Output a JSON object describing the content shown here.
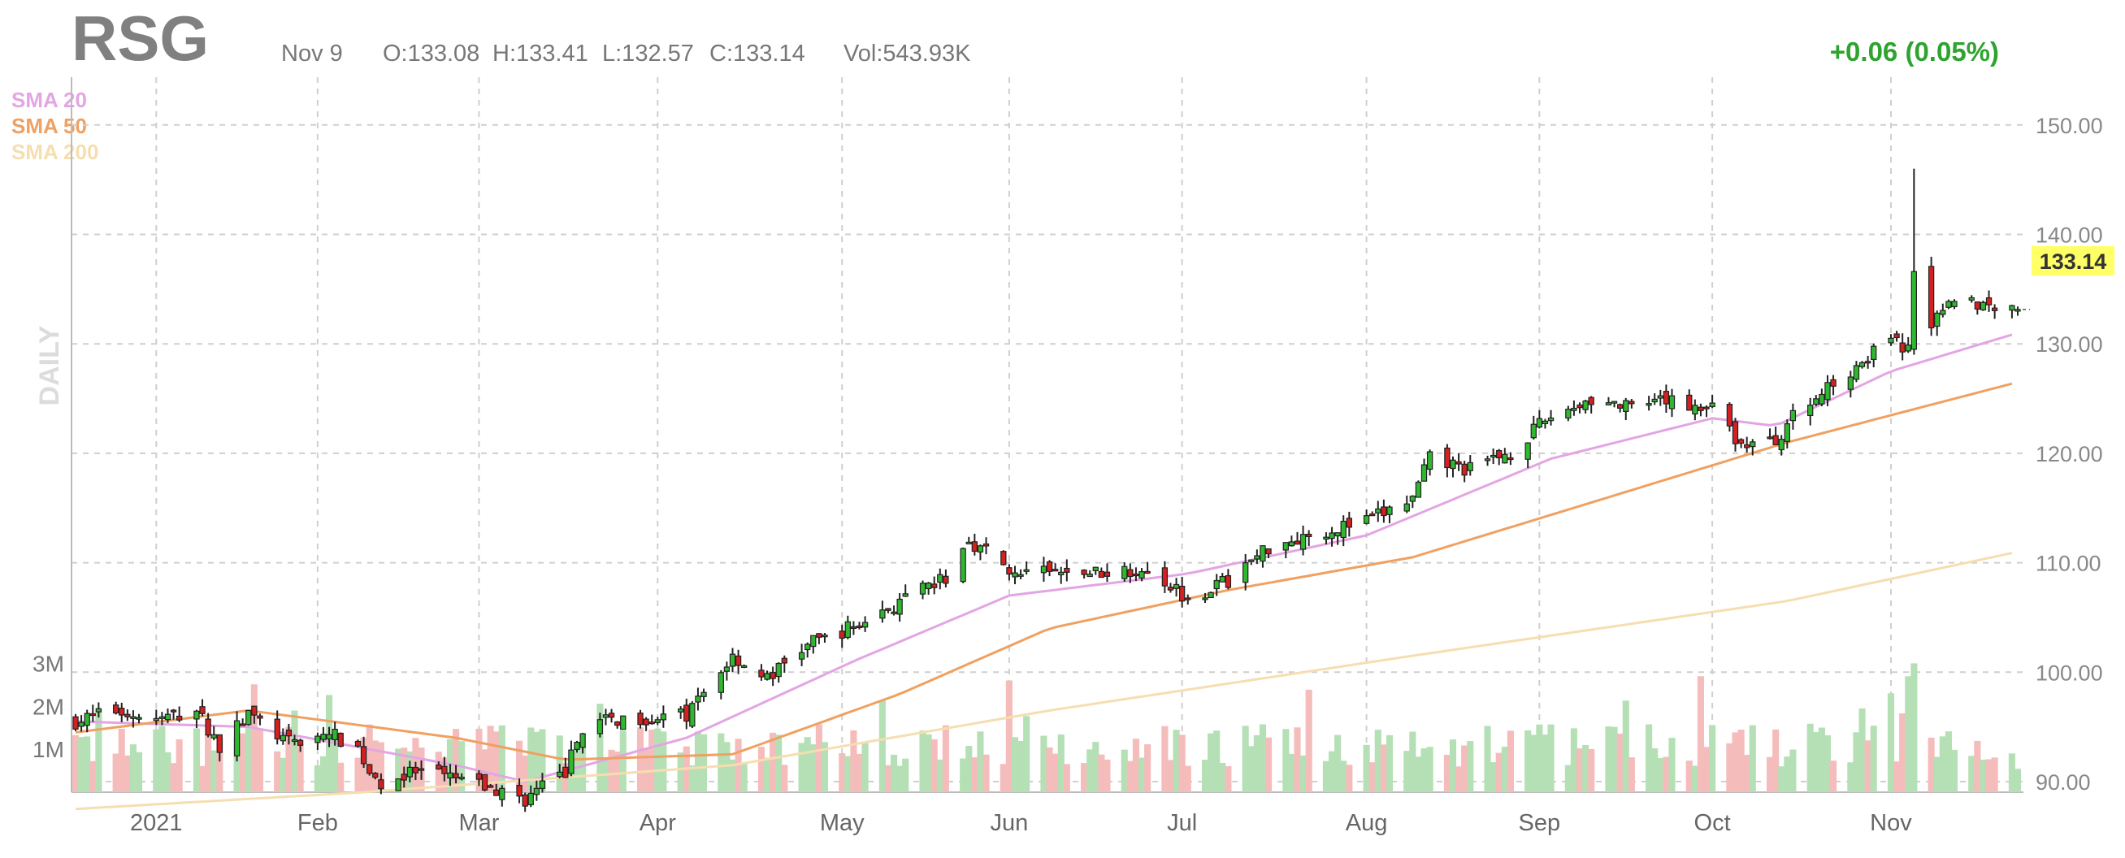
{
  "header": {
    "ticker": "RSG",
    "date": "Nov 9",
    "open": "O:133.08",
    "high": "H:133.41",
    "low": "L:132.57",
    "close": "C:133.14",
    "volume": "Vol:543.93K",
    "change": "+0.06 (0.05%)"
  },
  "period_label": "DAILY",
  "legend": [
    {
      "label": "SMA 20",
      "color": "#e3a5e3"
    },
    {
      "label": "SMA 50",
      "color": "#f0a060"
    },
    {
      "label": "SMA 200",
      "color": "#f5deb0"
    }
  ],
  "colors": {
    "up": "#2fb82f",
    "down": "#d42020",
    "vol_up": "#b5e0b5",
    "vol_down": "#f5bcbc",
    "last_bg": "#ffff66"
  },
  "last_price_label": "133.14",
  "chart_data": {
    "type": "candlestick",
    "ylim": [
      85,
      150
    ],
    "y_ticks": [
      "150.00",
      "140.00",
      "130.00",
      "120.00",
      "110.00",
      "100.00",
      "90.00"
    ],
    "x_ticks": [
      "2021",
      "Feb",
      "Mar",
      "Apr",
      "May",
      "Jun",
      "Jul",
      "Aug",
      "Sep",
      "Oct",
      "Nov"
    ],
    "volume_ticks": [
      "3M",
      "2M",
      "1M"
    ],
    "volume_ylim": [
      0,
      3500000
    ],
    "price_anchors": [
      [
        "2020-12-21",
        95.5
      ],
      [
        "2020-12-28",
        96.5
      ],
      [
        "2021-01-04",
        95.6
      ],
      [
        "2021-01-11",
        96.5
      ],
      [
        "2021-01-15",
        93.2
      ],
      [
        "2021-01-20",
        96.2
      ],
      [
        "2021-01-27",
        93.5
      ],
      [
        "2021-02-03",
        94.4
      ],
      [
        "2021-02-08",
        93.1
      ],
      [
        "2021-02-11",
        89.8
      ],
      [
        "2021-02-18",
        90.8
      ],
      [
        "2021-02-25",
        90.3
      ],
      [
        "2021-03-02",
        89.5
      ],
      [
        "2021-03-09",
        88.4
      ],
      [
        "2021-03-16",
        90.9
      ],
      [
        "2021-03-19",
        95.0
      ],
      [
        "2021-03-26",
        95.8
      ],
      [
        "2021-04-06",
        96.0
      ],
      [
        "2021-04-14",
        101.5
      ],
      [
        "2021-04-20",
        99.4
      ],
      [
        "2021-04-27",
        102.5
      ],
      [
        "2021-05-05",
        104.2
      ],
      [
        "2021-05-13",
        106.3
      ],
      [
        "2021-05-21",
        108.6
      ],
      [
        "2021-05-25",
        112.1
      ],
      [
        "2021-06-01",
        109.5
      ],
      [
        "2021-06-08",
        109.0
      ],
      [
        "2021-06-18",
        109.2
      ],
      [
        "2021-06-25",
        109.6
      ],
      [
        "2021-07-02",
        106.8
      ],
      [
        "2021-07-09",
        108.4
      ],
      [
        "2021-07-16",
        111.5
      ],
      [
        "2021-07-23",
        112.6
      ],
      [
        "2021-08-02",
        113.8
      ],
      [
        "2021-08-10",
        115.8
      ],
      [
        "2021-08-13",
        119.5
      ],
      [
        "2021-08-20",
        118.5
      ],
      [
        "2021-08-27",
        120.2
      ],
      [
        "2021-09-03",
        123.4
      ],
      [
        "2021-09-10",
        125.0
      ],
      [
        "2021-09-17",
        124.0
      ],
      [
        "2021-09-24",
        124.8
      ],
      [
        "2021-10-01",
        124.0
      ],
      [
        "2021-10-06",
        120.8
      ],
      [
        "2021-10-12",
        121.0
      ],
      [
        "2021-10-14",
        122.8
      ],
      [
        "2021-10-20",
        125.5
      ],
      [
        "2021-10-27",
        128.5
      ],
      [
        "2021-11-01",
        130.2
      ],
      [
        "2021-11-05",
        129.5
      ],
      [
        "2021-11-11",
        134.5
      ],
      [
        "2021-11-17",
        133.6
      ],
      [
        "2021-11-23",
        133.14
      ]
    ],
    "ohlc_samples": [
      {
        "date": "2021-11-05",
        "open": 129.5,
        "high": 146.0,
        "low": 129.0,
        "close": 136.6
      },
      {
        "date": "2021-11-23",
        "open": 133.08,
        "high": 133.41,
        "low": 132.57,
        "close": 133.14
      }
    ],
    "volume_samples": [
      {
        "date": "2021-11-05",
        "volume": 3000000
      },
      {
        "date": "2021-11-04",
        "volume": 2700000
      },
      {
        "date": "2021-09-29",
        "volume": 2700000
      },
      {
        "date": "2021-06-01",
        "volume": 2600000
      },
      {
        "date": "2021-11-23",
        "volume": 543930
      }
    ],
    "sma": {
      "SMA 20": [
        [
          "2020-12-21",
          95.5
        ],
        [
          "2021-01-20",
          95.0
        ],
        [
          "2021-02-25",
          91.5
        ],
        [
          "2021-03-09",
          90.0
        ],
        [
          "2021-04-06",
          94.0
        ],
        [
          "2021-05-05",
          101.0
        ],
        [
          "2021-06-01",
          107.0
        ],
        [
          "2021-07-02",
          109.0
        ],
        [
          "2021-08-02",
          112.5
        ],
        [
          "2021-09-03",
          119.5
        ],
        [
          "2021-10-01",
          123.2
        ],
        [
          "2021-10-12",
          122.5
        ],
        [
          "2021-11-01",
          127.5
        ],
        [
          "2021-11-23",
          131.0
        ]
      ],
      "SMA 50": [
        [
          "2020-12-21",
          94.5
        ],
        [
          "2021-01-20",
          96.5
        ],
        [
          "2021-02-25",
          94.0
        ],
        [
          "2021-03-16",
          92.0
        ],
        [
          "2021-04-14",
          92.5
        ],
        [
          "2021-05-13",
          98.0
        ],
        [
          "2021-06-08",
          104.0
        ],
        [
          "2021-07-09",
          107.5
        ],
        [
          "2021-08-10",
          110.5
        ],
        [
          "2021-09-10",
          115.5
        ],
        [
          "2021-10-14",
          121.0
        ],
        [
          "2021-11-23",
          126.5
        ]
      ],
      "SMA 200": [
        [
          "2020-12-21",
          87.5
        ],
        [
          "2021-02-08",
          89.0
        ],
        [
          "2021-04-14",
          91.5
        ],
        [
          "2021-06-08",
          96.5
        ],
        [
          "2021-08-10",
          101.5
        ],
        [
          "2021-10-14",
          106.5
        ],
        [
          "2021-11-23",
          111.0
        ]
      ]
    }
  }
}
